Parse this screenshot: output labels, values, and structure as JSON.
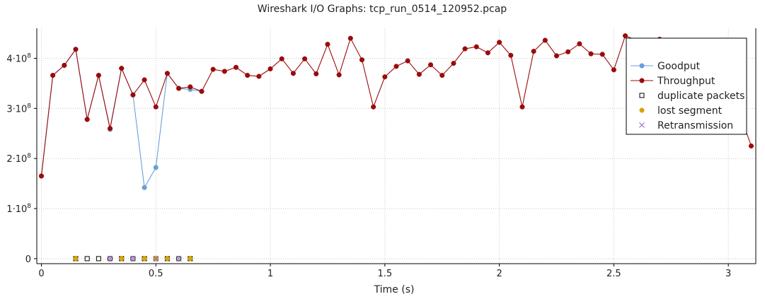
{
  "chart_data": {
    "type": "line",
    "title": "Wireshark I/O Graphs: tcp_run_0514_120952.pcap",
    "xlabel": "Time (s)",
    "ylabel": "",
    "xlim": [
      -0.02,
      3.12
    ],
    "ylim": [
      -10000000.0,
      460000000.0
    ],
    "grid": true,
    "legend_position": "top-right",
    "x_ticks": [
      {
        "value": 0,
        "label": "0"
      },
      {
        "value": 0.5,
        "label": "0.5"
      },
      {
        "value": 1,
        "label": "1"
      },
      {
        "value": 1.5,
        "label": "1.5"
      },
      {
        "value": 2,
        "label": "2"
      },
      {
        "value": 2.5,
        "label": "2.5"
      },
      {
        "value": 3,
        "label": "3"
      }
    ],
    "y_ticks": [
      {
        "value": 0,
        "mant": "0",
        "exp": ""
      },
      {
        "value": 100000000,
        "mant": "1·10",
        "exp": "8"
      },
      {
        "value": 200000000,
        "mant": "2·10",
        "exp": "8"
      },
      {
        "value": 300000000,
        "mant": "3·10",
        "exp": "8"
      },
      {
        "value": 400000000,
        "mant": "4·10",
        "exp": "8"
      }
    ],
    "series": [
      {
        "name": "Goodput",
        "style": "line-dot",
        "color": "#6a9fd8",
        "x": [
          0.0,
          0.05,
          0.1,
          0.15,
          0.2,
          0.25,
          0.3,
          0.35,
          0.4,
          0.45,
          0.5,
          0.55,
          0.6,
          0.65,
          0.7
        ],
        "y": [
          165000000,
          366000000,
          386000000,
          418000000,
          278000000,
          366000000,
          258000000,
          380000000,
          327000000,
          142000000,
          182000000,
          370000000,
          340000000,
          338000000,
          334000000
        ]
      },
      {
        "name": "Throughput",
        "style": "line-dot",
        "color": "#9b0b0b",
        "x": [
          0.0,
          0.05,
          0.1,
          0.15,
          0.2,
          0.25,
          0.3,
          0.35,
          0.4,
          0.45,
          0.5,
          0.55,
          0.6,
          0.65,
          0.7,
          0.75,
          0.8,
          0.85,
          0.9,
          0.95,
          1.0,
          1.05,
          1.1,
          1.15,
          1.2,
          1.25,
          1.3,
          1.35,
          1.4,
          1.45,
          1.5,
          1.55,
          1.6,
          1.65,
          1.7,
          1.75,
          1.8,
          1.85,
          1.9,
          1.95,
          2.0,
          2.05,
          2.1,
          2.15,
          2.2,
          2.25,
          2.3,
          2.35,
          2.4,
          2.45,
          2.5,
          2.55,
          2.6,
          2.65,
          2.7,
          2.75,
          2.8,
          2.85,
          2.9,
          2.95,
          3.0,
          3.05,
          3.1
        ],
        "y": [
          165000000,
          366000000,
          386000000,
          418000000,
          278000000,
          366000000,
          260000000,
          380000000,
          327000000,
          357000000,
          303000000,
          370000000,
          340000000,
          343000000,
          334000000,
          378000000,
          374000000,
          382000000,
          366000000,
          364000000,
          379000000,
          399000000,
          370000000,
          399000000,
          369000000,
          428000000,
          367000000,
          440000000,
          397000000,
          303000000,
          363000000,
          384000000,
          395000000,
          368000000,
          387000000,
          366000000,
          390000000,
          419000000,
          423000000,
          411000000,
          432000000,
          406000000,
          303000000,
          414000000,
          436000000,
          405000000,
          413000000,
          429000000,
          409000000,
          408000000,
          377000000,
          445000000,
          436000000,
          432000000,
          438000000,
          420000000,
          410000000,
          395000000,
          380000000,
          350000000,
          320000000,
          290000000,
          225000000
        ]
      },
      {
        "name": "duplicate packets",
        "style": "square",
        "color": "#000000",
        "x": [
          0.15,
          0.2,
          0.25,
          0.3,
          0.35,
          0.4,
          0.45,
          0.5,
          0.55,
          0.6,
          0.65
        ],
        "y": [
          0,
          0,
          0,
          0,
          0,
          0,
          0,
          0,
          0,
          0,
          0
        ]
      },
      {
        "name": "lost segment",
        "style": "dot",
        "color": "#d9a400",
        "x": [
          0.15,
          0.35,
          0.45,
          0.5,
          0.55,
          0.65
        ],
        "y": [
          0,
          0,
          0,
          0,
          0,
          0
        ]
      },
      {
        "name": "Retransmission",
        "style": "cross",
        "color": "#9c70c6",
        "x": [
          0.3,
          0.4,
          0.5,
          0.6
        ],
        "y": [
          0,
          0,
          0,
          0
        ]
      }
    ]
  }
}
